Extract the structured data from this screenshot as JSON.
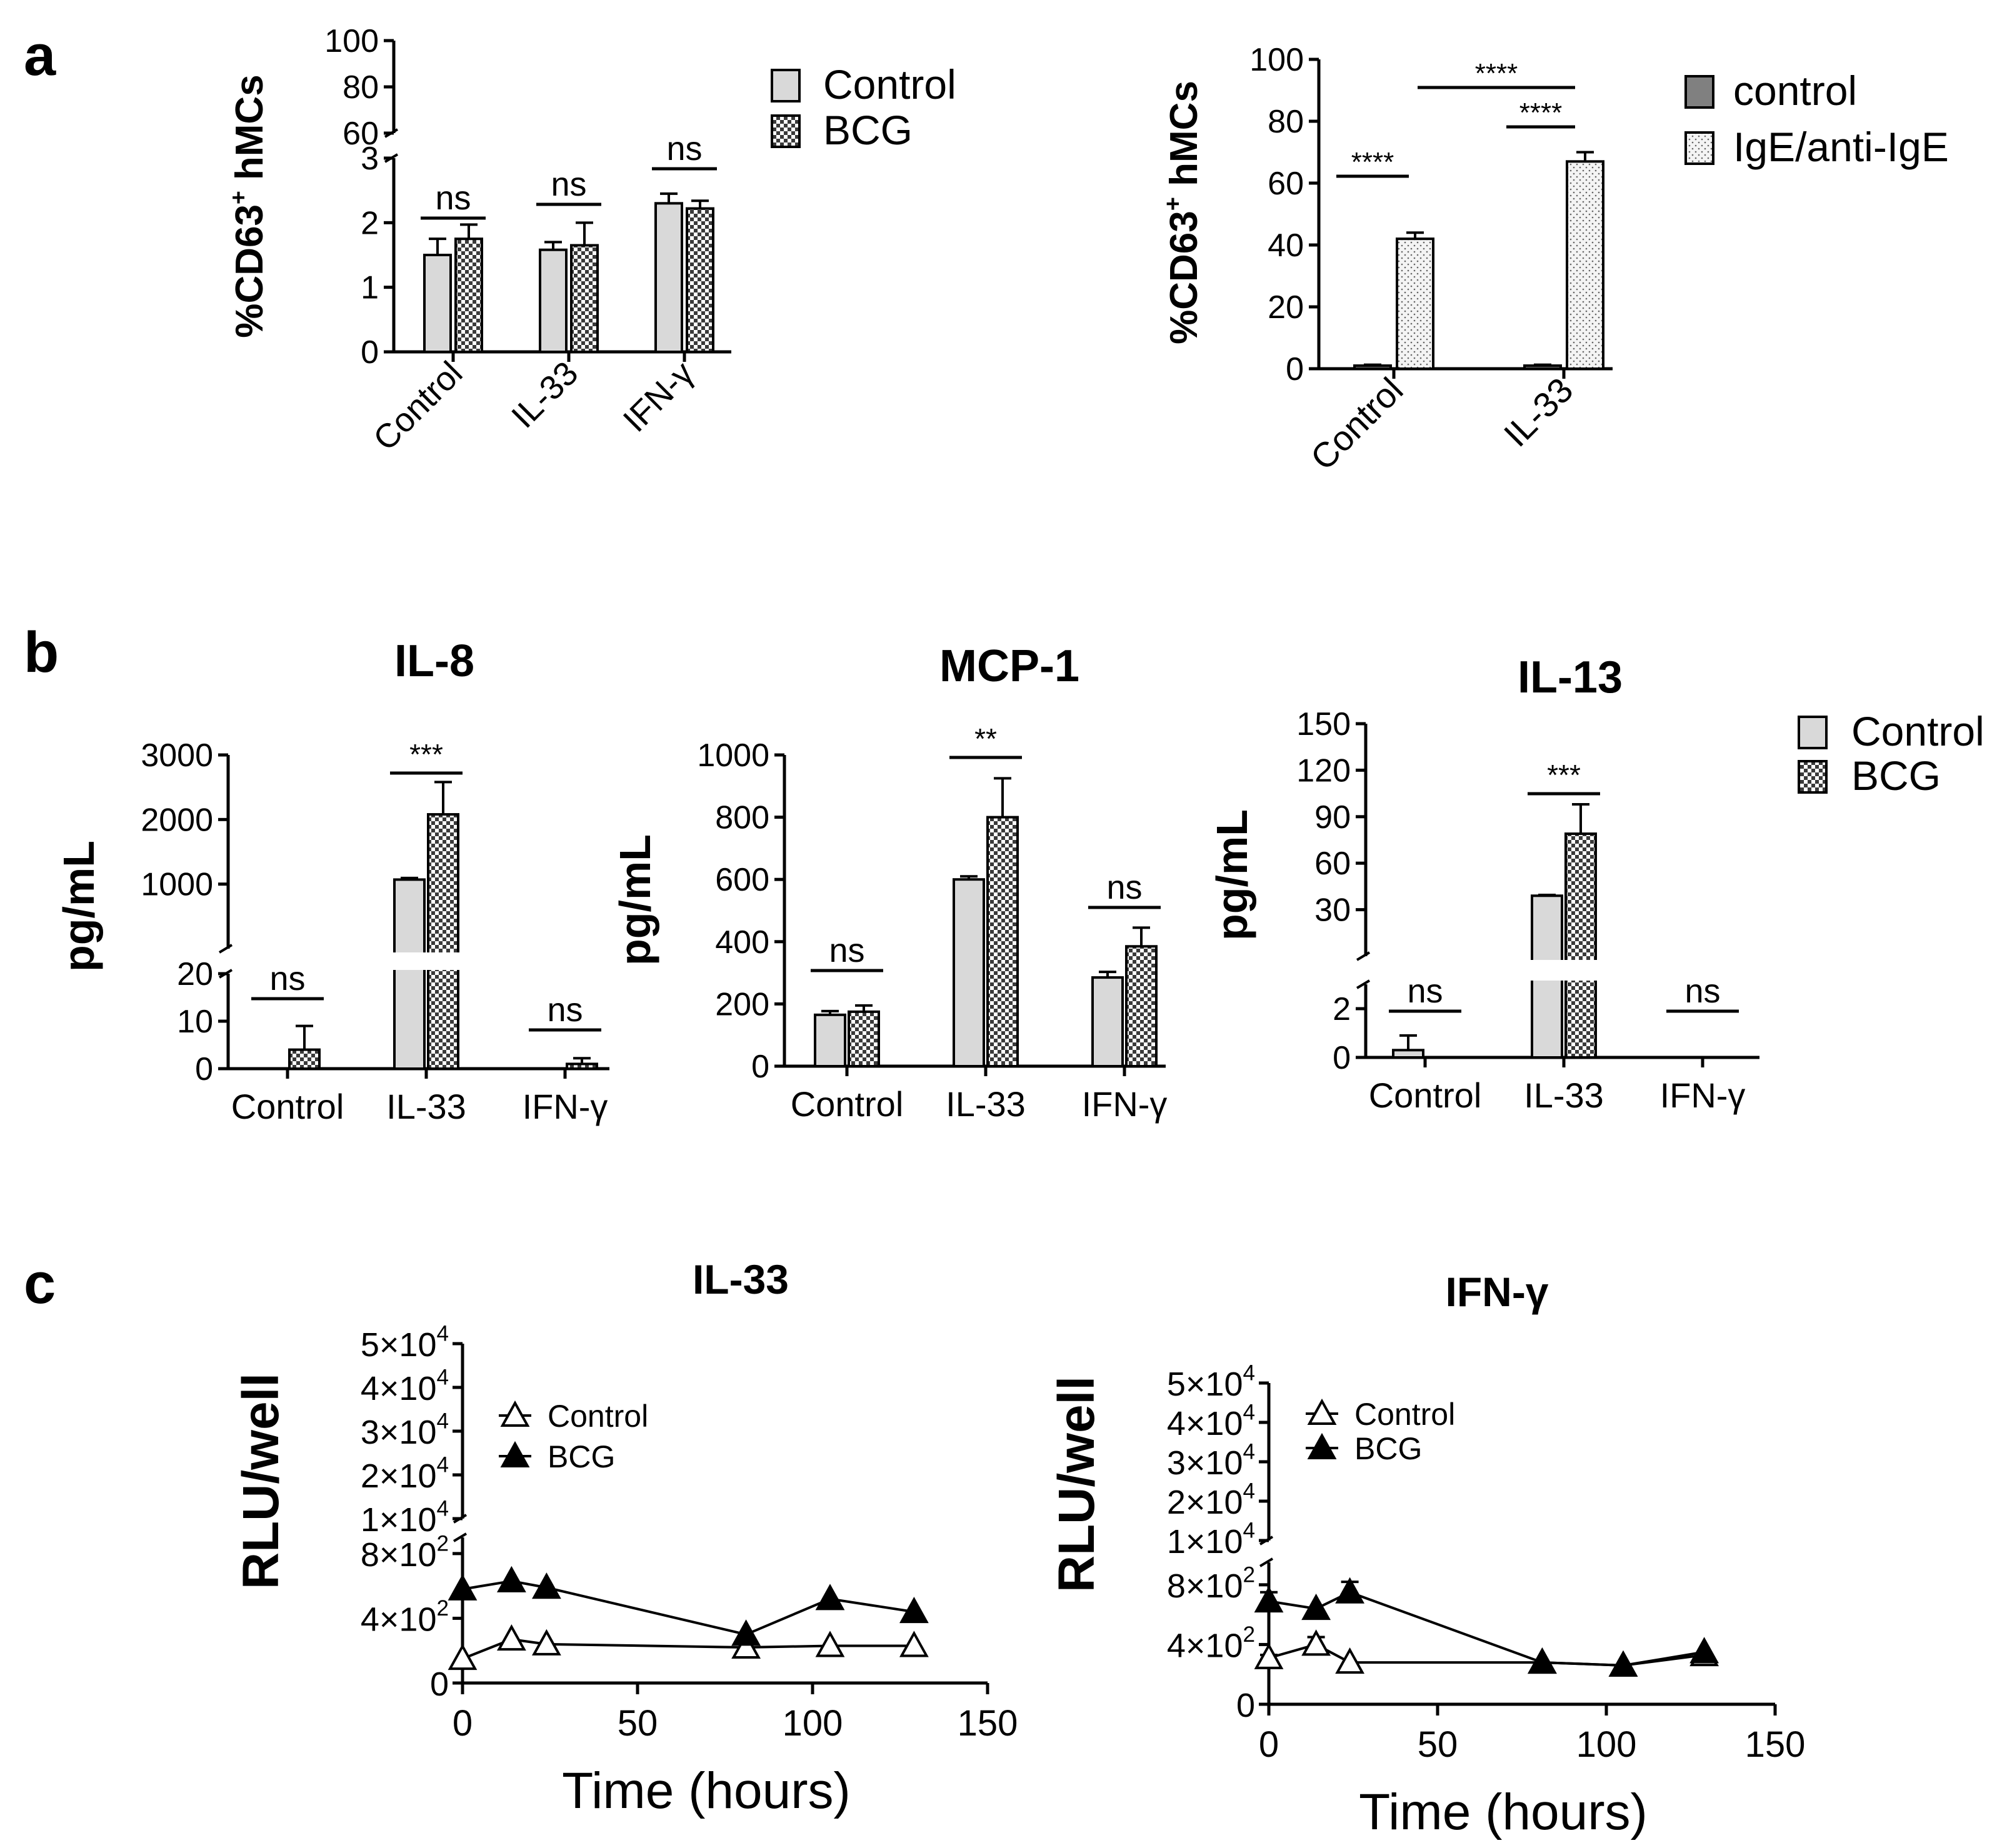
{
  "figure": {
    "panel_labels": [
      "a",
      "b",
      "c"
    ],
    "colors": {
      "control_fill": "#d9d9d9",
      "treated_fill": "#7f7f7f",
      "dark_control": "#808080",
      "dotted_fill": "#f2f2f2",
      "line": "#000000"
    }
  },
  "chart_data": [
    {
      "id": "a1",
      "type": "bar",
      "panel": "a",
      "title": "",
      "ylabel": "%CD63+ hMCs",
      "ylabel_main": "%CD63",
      "ylabel_sup": "+",
      "ylabel_tail": " hMCs",
      "categories": [
        "Control",
        "IL-33",
        "IFN-γ"
      ],
      "series": [
        {
          "name": "Control",
          "values": [
            1.5,
            1.58,
            2.3
          ],
          "errors": [
            0.25,
            0.12,
            0.15
          ]
        },
        {
          "name": "BCG",
          "values": [
            1.75,
            1.65,
            2.22
          ],
          "errors": [
            0.22,
            0.35,
            0.12
          ]
        }
      ],
      "y_segments": [
        {
          "range": [
            0,
            3
          ],
          "ticks": [
            0,
            1,
            2,
            3
          ]
        },
        {
          "range": [
            60,
            100
          ],
          "ticks": [
            60,
            80,
            100
          ]
        }
      ],
      "annotations": [
        {
          "category": 0,
          "text": "ns"
        },
        {
          "category": 1,
          "text": "ns"
        },
        {
          "category": 2,
          "text": "ns"
        }
      ],
      "legend": [
        "Control",
        "BCG"
      ]
    },
    {
      "id": "a2",
      "type": "bar",
      "panel": "a",
      "title": "",
      "ylabel": "%CD63+ hMCs",
      "categories": [
        "Control",
        "IL-33"
      ],
      "series": [
        {
          "name": "control",
          "values": [
            1,
            1
          ],
          "errors": [
            0.3,
            0.3
          ]
        },
        {
          "name": "IgE/anti-IgE",
          "values": [
            42,
            67
          ],
          "errors": [
            2,
            3
          ]
        }
      ],
      "ylim": [
        0,
        100
      ],
      "yticks": [
        0,
        20,
        40,
        60,
        80,
        100
      ],
      "annotations": [
        {
          "text": "****",
          "from": "Control-control",
          "to": "Control-IgE/anti-IgE"
        },
        {
          "text": "****",
          "from": "IL-33-control",
          "to": "IL-33-IgE/anti-IgE"
        },
        {
          "text": "****",
          "from": "Control-IgE/anti-IgE",
          "to": "IL-33-IgE/anti-IgE"
        }
      ],
      "legend": [
        "control",
        "IgE/anti-IgE"
      ]
    },
    {
      "id": "b1",
      "type": "bar",
      "panel": "b",
      "title": "IL-8",
      "ylabel": "pg/mL",
      "categories": [
        "Control",
        "IL-33",
        "IFN-γ"
      ],
      "series": [
        {
          "name": "Control",
          "values": [
            0,
            1070,
            0
          ],
          "errors": [
            0,
            25,
            0
          ]
        },
        {
          "name": "BCG",
          "values": [
            4,
            2080,
            1
          ],
          "errors": [
            5,
            500,
            1.2
          ]
        }
      ],
      "y_segments": [
        {
          "range": [
            0,
            20
          ],
          "ticks": [
            0,
            10,
            20
          ]
        },
        {
          "range": [
            0,
            3000
          ],
          "ticks": [
            1000,
            2000,
            3000
          ]
        }
      ],
      "annotations": [
        {
          "category": 0,
          "text": "ns"
        },
        {
          "category": 1,
          "text": "***"
        },
        {
          "category": 2,
          "text": "ns"
        }
      ]
    },
    {
      "id": "b2",
      "type": "bar",
      "panel": "b",
      "title": "MCP-1",
      "ylabel": "pg/mL",
      "categories": [
        "Control",
        "IL-33",
        "IFN-γ"
      ],
      "series": [
        {
          "name": "Control",
          "values": [
            165,
            600,
            285
          ],
          "errors": [
            12,
            10,
            18
          ]
        },
        {
          "name": "BCG",
          "values": [
            175,
            800,
            385
          ],
          "errors": [
            20,
            125,
            60
          ]
        }
      ],
      "ylim": [
        0,
        1000
      ],
      "yticks": [
        0,
        200,
        400,
        600,
        800,
        1000
      ],
      "annotations": [
        {
          "category": 0,
          "text": "ns"
        },
        {
          "category": 1,
          "text": "**"
        },
        {
          "category": 2,
          "text": "ns"
        }
      ]
    },
    {
      "id": "b3",
      "type": "bar",
      "panel": "b",
      "title": "IL-13",
      "ylabel": "pg/mL",
      "categories": [
        "Control",
        "IL-33",
        "IFN-γ"
      ],
      "series": [
        {
          "name": "Control",
          "values": [
            0.3,
            39,
            0
          ],
          "errors": [
            0.6,
            0.5,
            0
          ]
        },
        {
          "name": "BCG",
          "values": [
            0,
            79,
            0
          ],
          "errors": [
            0,
            19,
            0
          ]
        }
      ],
      "y_segments": [
        {
          "range": [
            0,
            3
          ],
          "ticks": [
            0,
            2
          ]
        },
        {
          "range": [
            0,
            150
          ],
          "ticks": [
            30,
            60,
            90,
            120,
            150
          ]
        }
      ],
      "annotations": [
        {
          "category": 0,
          "text": "ns"
        },
        {
          "category": 1,
          "text": "***"
        },
        {
          "category": 2,
          "text": "ns"
        }
      ],
      "legend": [
        "Control",
        "BCG"
      ]
    },
    {
      "id": "c1",
      "type": "line",
      "panel": "c",
      "title": "IL-33",
      "xlabel": "Time (hours)",
      "ylabel": "RLU/well",
      "xlim": [
        0,
        150
      ],
      "xticks": [
        0,
        50,
        100,
        150
      ],
      "y_lower": {
        "range": [
          0,
          900
        ],
        "ticks": [
          0,
          400,
          800
        ],
        "tick_labels": [
          [
            "0",
            ""
          ],
          [
            "4×10",
            "2"
          ],
          [
            "8×10",
            "2"
          ]
        ]
      },
      "y_upper_tick_labels": [
        [
          "1×10",
          "4"
        ],
        [
          "2×10",
          "4"
        ],
        [
          "3×10",
          "4"
        ],
        [
          "4×10",
          "4"
        ],
        [
          "5×10",
          "4"
        ]
      ],
      "series": [
        {
          "name": "Control",
          "marker": "open-triangle",
          "x": [
            0,
            14,
            24,
            81,
            105,
            129
          ],
          "y": [
            150,
            270,
            240,
            220,
            230,
            230
          ],
          "errors": [
            0,
            0,
            0,
            0,
            0,
            0
          ]
        },
        {
          "name": "BCG",
          "marker": "filled-triangle",
          "x": [
            0,
            14,
            24,
            81,
            105,
            129
          ],
          "y": [
            580,
            630,
            590,
            300,
            520,
            440
          ],
          "errors": [
            0,
            0,
            0,
            0,
            0,
            0
          ]
        }
      ],
      "legend": [
        "Control",
        "BCG"
      ]
    },
    {
      "id": "c2",
      "type": "line",
      "panel": "c",
      "title": "IFN-γ",
      "xlabel": "Time (hours)",
      "ylabel": "RLU/well",
      "xlim": [
        0,
        150
      ],
      "xticks": [
        0,
        50,
        100,
        150
      ],
      "y_lower": {
        "range": [
          0,
          950
        ],
        "ticks": [
          0,
          400,
          800
        ],
        "tick_labels": [
          [
            "0",
            ""
          ],
          [
            "4×10",
            "2"
          ],
          [
            "8×10",
            "2"
          ]
        ]
      },
      "y_upper_tick_labels": [
        [
          "1×10",
          "4"
        ],
        [
          "2×10",
          "4"
        ],
        [
          "3×10",
          "4"
        ],
        [
          "4×10",
          "4"
        ],
        [
          "5×10",
          "4"
        ]
      ],
      "series": [
        {
          "name": "Control",
          "marker": "open-triangle",
          "x": [
            0,
            14,
            24,
            81,
            105,
            129
          ],
          "y": [
            310,
            400,
            280,
            280,
            260,
            330
          ],
          "errors": [
            20,
            50,
            0,
            0,
            0,
            0
          ]
        },
        {
          "name": "BCG",
          "marker": "filled-triangle",
          "x": [
            0,
            14,
            24,
            81,
            105,
            129
          ],
          "y": [
            690,
            640,
            750,
            280,
            260,
            350
          ],
          "errors": [
            60,
            0,
            70,
            0,
            0,
            0
          ]
        }
      ],
      "legend": [
        "Control",
        "BCG"
      ]
    }
  ]
}
